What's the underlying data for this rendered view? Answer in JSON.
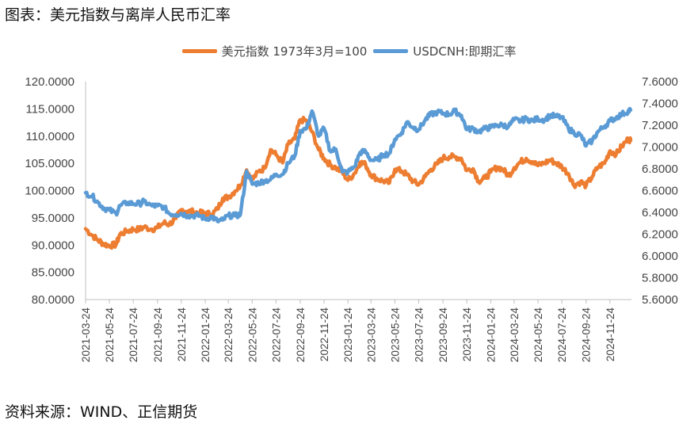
{
  "title": "图表：美元指数与离岸人民币汇率",
  "source": "资料来源：WIND、正信期货",
  "colors": {
    "usd_index": "#ED7D31",
    "usdcnh": "#5B9BD5",
    "axis": "#BFBFBF"
  },
  "chart_data": {
    "type": "line",
    "legend_position": "top-center",
    "grid": false,
    "x_tick_labels": [
      "2021-03-24",
      "2021-05-24",
      "2021-07-24",
      "2021-09-24",
      "2021-11-24",
      "2022-01-24",
      "2022-03-24",
      "2022-05-24",
      "2022-07-24",
      "2022-09-24",
      "2022-11-24",
      "2023-01-24",
      "2023-03-24",
      "2023-05-24",
      "2023-07-24",
      "2023-09-24",
      "2023-11-24",
      "2024-01-24",
      "2024-03-24",
      "2024-05-24",
      "2024-07-24",
      "2024-09-24",
      "2024-11-24"
    ],
    "y_left": {
      "ylim": [
        80,
        120
      ],
      "ticks": [
        "80.0000",
        "85.0000",
        "90.0000",
        "95.0000",
        "100.0000",
        "105.0000",
        "110.0000",
        "115.0000",
        "120.0000"
      ]
    },
    "y_right": {
      "ylim": [
        5.6,
        7.6
      ],
      "ticks": [
        "5.6000",
        "5.8000",
        "6.0000",
        "6.2000",
        "6.4000",
        "6.6000",
        "6.8000",
        "7.0000",
        "7.2000",
        "7.4000",
        "7.6000"
      ]
    },
    "series": [
      {
        "name": "美元指数 1973年3月=100",
        "axis": "left",
        "points": [
          [
            "2021-03-24",
            93.0
          ],
          [
            "2021-04-10",
            91.8
          ],
          [
            "2021-04-25",
            90.9
          ],
          [
            "2021-05-10",
            90.2
          ],
          [
            "2021-05-24",
            89.9
          ],
          [
            "2021-06-10",
            90.1
          ],
          [
            "2021-06-20",
            92.0
          ],
          [
            "2021-07-10",
            92.6
          ],
          [
            "2021-07-24",
            92.9
          ],
          [
            "2021-08-10",
            92.9
          ],
          [
            "2021-08-20",
            93.3
          ],
          [
            "2021-09-10",
            92.9
          ],
          [
            "2021-09-24",
            93.2
          ],
          [
            "2021-10-10",
            94.1
          ],
          [
            "2021-10-24",
            93.8
          ],
          [
            "2021-11-10",
            94.9
          ],
          [
            "2021-11-24",
            96.5
          ],
          [
            "2021-12-10",
            96.2
          ],
          [
            "2021-12-24",
            96.1
          ],
          [
            "2022-01-10",
            95.9
          ],
          [
            "2022-01-24",
            95.9
          ],
          [
            "2022-02-10",
            95.6
          ],
          [
            "2022-02-24",
            96.6
          ],
          [
            "2022-03-10",
            98.6
          ],
          [
            "2022-03-24",
            98.8
          ],
          [
            "2022-04-10",
            99.9
          ],
          [
            "2022-04-24",
            101.0
          ],
          [
            "2022-05-10",
            103.8
          ],
          [
            "2022-05-24",
            102.0
          ],
          [
            "2022-06-10",
            103.5
          ],
          [
            "2022-06-24",
            104.1
          ],
          [
            "2022-07-10",
            107.5
          ],
          [
            "2022-07-24",
            106.6
          ],
          [
            "2022-08-10",
            105.1
          ],
          [
            "2022-08-24",
            108.5
          ],
          [
            "2022-09-10",
            109.5
          ],
          [
            "2022-09-24",
            113.0
          ],
          [
            "2022-10-10",
            112.8
          ],
          [
            "2022-10-24",
            110.8
          ],
          [
            "2022-11-10",
            107.5
          ],
          [
            "2022-11-24",
            105.9
          ],
          [
            "2022-12-10",
            104.7
          ],
          [
            "2022-12-24",
            104.2
          ],
          [
            "2023-01-10",
            103.3
          ],
          [
            "2023-01-24",
            101.9
          ],
          [
            "2023-02-10",
            103.2
          ],
          [
            "2023-02-24",
            105.2
          ],
          [
            "2023-03-10",
            104.8
          ],
          [
            "2023-03-24",
            102.9
          ],
          [
            "2023-04-10",
            102.1
          ],
          [
            "2023-04-24",
            101.8
          ],
          [
            "2023-05-10",
            101.4
          ],
          [
            "2023-05-24",
            103.9
          ],
          [
            "2023-06-10",
            103.6
          ],
          [
            "2023-06-24",
            102.9
          ],
          [
            "2023-07-10",
            101.7
          ],
          [
            "2023-07-24",
            101.1
          ],
          [
            "2023-08-10",
            102.6
          ],
          [
            "2023-08-24",
            103.9
          ],
          [
            "2023-09-10",
            104.9
          ],
          [
            "2023-09-24",
            106.0
          ],
          [
            "2023-10-10",
            106.2
          ],
          [
            "2023-10-24",
            106.2
          ],
          [
            "2023-11-10",
            105.9
          ],
          [
            "2023-11-24",
            103.7
          ],
          [
            "2023-12-10",
            104.0
          ],
          [
            "2023-12-24",
            101.7
          ],
          [
            "2024-01-10",
            102.3
          ],
          [
            "2024-01-24",
            103.4
          ],
          [
            "2024-02-10",
            104.3
          ],
          [
            "2024-02-24",
            103.9
          ],
          [
            "2024-03-10",
            102.7
          ],
          [
            "2024-03-24",
            104.2
          ],
          [
            "2024-04-10",
            105.3
          ],
          [
            "2024-04-24",
            105.9
          ],
          [
            "2024-05-10",
            105.3
          ],
          [
            "2024-05-24",
            104.6
          ],
          [
            "2024-06-10",
            105.1
          ],
          [
            "2024-06-24",
            105.6
          ],
          [
            "2024-07-10",
            105.0
          ],
          [
            "2024-07-24",
            104.4
          ],
          [
            "2024-08-10",
            103.1
          ],
          [
            "2024-08-24",
            101.0
          ],
          [
            "2024-09-10",
            101.6
          ],
          [
            "2024-09-24",
            100.9
          ],
          [
            "2024-10-10",
            102.6
          ],
          [
            "2024-10-24",
            104.3
          ],
          [
            "2024-11-10",
            105.0
          ],
          [
            "2024-11-24",
            107.3
          ],
          [
            "2024-12-10",
            106.7
          ],
          [
            "2024-12-24",
            108.1
          ],
          [
            "2025-01-10",
            109.5
          ],
          [
            "2025-01-16",
            109.2
          ]
        ]
      },
      {
        "name": "USDCNH:即期汇率",
        "axis": "right",
        "points": [
          [
            "2021-03-24",
            6.58
          ],
          [
            "2021-04-10",
            6.55
          ],
          [
            "2021-04-25",
            6.49
          ],
          [
            "2021-05-10",
            6.44
          ],
          [
            "2021-05-24",
            6.42
          ],
          [
            "2021-06-10",
            6.39
          ],
          [
            "2021-06-20",
            6.46
          ],
          [
            "2021-07-10",
            6.49
          ],
          [
            "2021-07-24",
            6.48
          ],
          [
            "2021-08-10",
            6.48
          ],
          [
            "2021-08-20",
            6.5
          ],
          [
            "2021-09-10",
            6.46
          ],
          [
            "2021-09-24",
            6.46
          ],
          [
            "2021-10-10",
            6.45
          ],
          [
            "2021-10-24",
            6.39
          ],
          [
            "2021-11-10",
            6.38
          ],
          [
            "2021-11-24",
            6.39
          ],
          [
            "2021-12-10",
            6.37
          ],
          [
            "2021-12-24",
            6.37
          ],
          [
            "2022-01-10",
            6.37
          ],
          [
            "2022-01-24",
            6.34
          ],
          [
            "2022-02-10",
            6.36
          ],
          [
            "2022-02-24",
            6.32
          ],
          [
            "2022-03-10",
            6.33
          ],
          [
            "2022-03-24",
            6.37
          ],
          [
            "2022-04-10",
            6.37
          ],
          [
            "2022-04-24",
            6.38
          ],
          [
            "2022-05-10",
            6.78
          ],
          [
            "2022-05-24",
            6.66
          ],
          [
            "2022-06-10",
            6.67
          ],
          [
            "2022-06-24",
            6.69
          ],
          [
            "2022-07-10",
            6.7
          ],
          [
            "2022-07-24",
            6.75
          ],
          [
            "2022-08-10",
            6.75
          ],
          [
            "2022-08-24",
            6.85
          ],
          [
            "2022-09-10",
            6.92
          ],
          [
            "2022-09-24",
            7.15
          ],
          [
            "2022-10-10",
            7.17
          ],
          [
            "2022-10-24",
            7.33
          ],
          [
            "2022-11-10",
            7.1
          ],
          [
            "2022-11-24",
            7.17
          ],
          [
            "2022-12-10",
            6.96
          ],
          [
            "2022-12-24",
            6.98
          ],
          [
            "2023-01-10",
            6.77
          ],
          [
            "2023-01-24",
            6.77
          ],
          [
            "2023-02-10",
            6.82
          ],
          [
            "2023-02-24",
            6.95
          ],
          [
            "2023-03-10",
            6.96
          ],
          [
            "2023-03-24",
            6.88
          ],
          [
            "2023-04-10",
            6.88
          ],
          [
            "2023-04-24",
            6.93
          ],
          [
            "2023-05-10",
            6.94
          ],
          [
            "2023-05-24",
            7.07
          ],
          [
            "2023-06-10",
            7.13
          ],
          [
            "2023-06-24",
            7.23
          ],
          [
            "2023-07-10",
            7.18
          ],
          [
            "2023-07-24",
            7.16
          ],
          [
            "2023-08-10",
            7.25
          ],
          [
            "2023-08-24",
            7.3
          ],
          [
            "2023-09-10",
            7.32
          ],
          [
            "2023-09-24",
            7.31
          ],
          [
            "2023-10-10",
            7.3
          ],
          [
            "2023-10-24",
            7.33
          ],
          [
            "2023-11-10",
            7.29
          ],
          [
            "2023-11-24",
            7.16
          ],
          [
            "2023-12-10",
            7.17
          ],
          [
            "2023-12-24",
            7.14
          ],
          [
            "2024-01-10",
            7.17
          ],
          [
            "2024-01-24",
            7.18
          ],
          [
            "2024-02-10",
            7.2
          ],
          [
            "2024-02-24",
            7.2
          ],
          [
            "2024-03-10",
            7.19
          ],
          [
            "2024-03-24",
            7.25
          ],
          [
            "2024-04-10",
            7.24
          ],
          [
            "2024-04-24",
            7.26
          ],
          [
            "2024-05-10",
            7.24
          ],
          [
            "2024-05-24",
            7.26
          ],
          [
            "2024-06-10",
            7.25
          ],
          [
            "2024-06-24",
            7.29
          ],
          [
            "2024-07-10",
            7.28
          ],
          [
            "2024-07-24",
            7.27
          ],
          [
            "2024-08-10",
            7.17
          ],
          [
            "2024-08-24",
            7.13
          ],
          [
            "2024-09-10",
            7.11
          ],
          [
            "2024-09-24",
            7.01
          ],
          [
            "2024-10-10",
            7.06
          ],
          [
            "2024-10-24",
            7.14
          ],
          [
            "2024-11-10",
            7.19
          ],
          [
            "2024-11-24",
            7.24
          ],
          [
            "2024-12-10",
            7.27
          ],
          [
            "2024-12-24",
            7.3
          ],
          [
            "2025-01-10",
            7.33
          ],
          [
            "2025-01-16",
            7.34
          ]
        ]
      }
    ]
  }
}
